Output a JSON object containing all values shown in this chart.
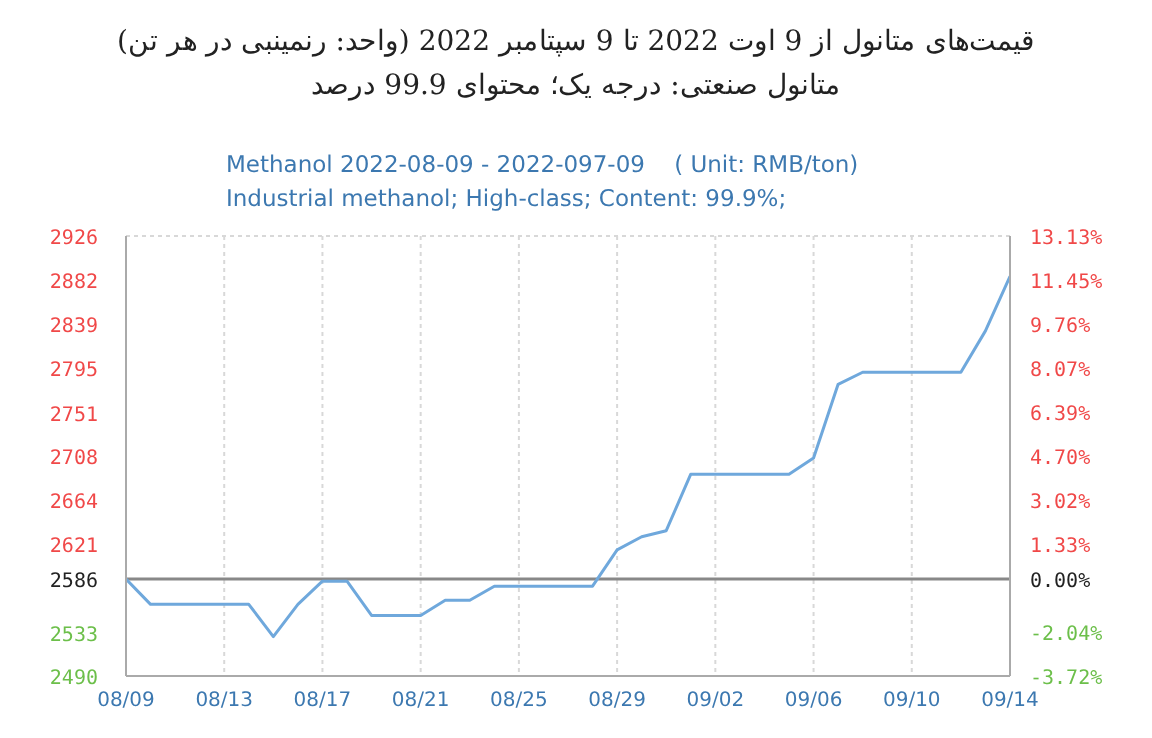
{
  "chart_data": {
    "type": "line",
    "title": "قیمت‌های متانول از 9 اوت 2022 تا 9 سپتامبر 2022 (واحد: رنمینبی در هر تن)",
    "subtitle": "متانول صنعتی: درجه یک؛ محتوای 99.9 درصد",
    "annotations": [
      "Methanol 2022-08-09 - 2022-097-09    ( Unit: RMB/ton)",
      "Industrial methanol; High-class; Content: 99.9%;"
    ],
    "x": [
      "2022-08-09",
      "2022-08-10",
      "2022-08-14",
      "2022-08-15",
      "2022-08-16",
      "2022-08-17",
      "2022-08-18",
      "2022-08-19",
      "2022-08-21",
      "2022-08-22",
      "2022-08-23",
      "2022-08-24",
      "2022-08-28",
      "2022-08-29",
      "2022-08-30",
      "2022-08-31",
      "2022-09-01",
      "2022-09-05",
      "2022-09-06",
      "2022-09-07",
      "2022-09-08",
      "2022-09-12",
      "2022-09-13",
      "2022-09-14"
    ],
    "series": [
      {
        "color": "#6fa8dc",
        "values": [
          2586,
          2561,
          2561,
          2529,
          2561,
          2584,
          2584,
          2550,
          2550,
          2565,
          2565,
          2579,
          2579,
          2615,
          2628,
          2634,
          2690,
          2690,
          2706,
          2779,
          2791,
          2791,
          2832,
          2886
        ]
      }
    ],
    "xlim": [
      "2022-08-09",
      "2022-09-14"
    ],
    "xticks": [
      {
        "value": "2022-08-09",
        "label": "08/09"
      },
      {
        "value": "2022-08-13",
        "label": "08/13"
      },
      {
        "value": "2022-08-17",
        "label": "08/17"
      },
      {
        "value": "2022-08-21",
        "label": "08/21"
      },
      {
        "value": "2022-08-25",
        "label": "08/25"
      },
      {
        "value": "2022-08-29",
        "label": "08/29"
      },
      {
        "value": "2022-09-02",
        "label": "09/02"
      },
      {
        "value": "2022-09-06",
        "label": "09/06"
      },
      {
        "value": "2022-09-10",
        "label": "09/10"
      },
      {
        "value": "2022-09-14",
        "label": "09/14"
      }
    ],
    "ylim": [
      2490,
      2926
    ],
    "yticks": [
      2490,
      2533,
      2586,
      2621,
      2664,
      2708,
      2751,
      2795,
      2839,
      2882,
      2926
    ],
    "y2lim": [
      -3.72,
      13.13
    ],
    "y2ticks": [
      {
        "value": -3.72,
        "label": "-3.72%"
      },
      {
        "value": -2.04,
        "label": "-2.04%"
      },
      {
        "value": 0,
        "label": "0.00%"
      },
      {
        "value": 1.33,
        "label": "1.33%"
      },
      {
        "value": 3.02,
        "label": "3.02%"
      },
      {
        "value": 4.7,
        "label": "4.70%"
      },
      {
        "value": 6.39,
        "label": "6.39%"
      },
      {
        "value": 8.07,
        "label": "8.07%"
      },
      {
        "value": 9.76,
        "label": "9.76%"
      },
      {
        "value": 11.45,
        "label": "11.45%"
      },
      {
        "value": 13.13,
        "label": "13.13%"
      }
    ],
    "ref_lines": [
      {
        "axis": "y",
        "value": 2586,
        "color": "#888888"
      }
    ],
    "grid": true,
    "marker": "none",
    "line_style": "solid"
  }
}
